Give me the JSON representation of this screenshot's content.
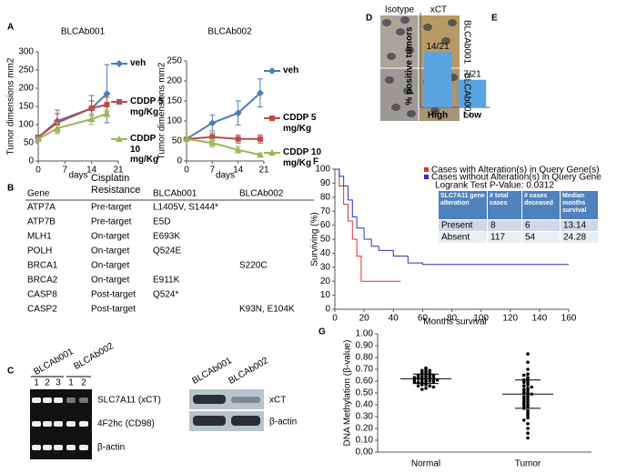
{
  "panel_labels": [
    "A",
    "B",
    "C",
    "D",
    "E",
    "F",
    "G"
  ],
  "chart_data": [
    {
      "type": "line",
      "title": "BLCAb001",
      "xlabel": "days",
      "ylabel": "Tumor dimensions mm2",
      "x": [
        0,
        5,
        14,
        18
      ],
      "xlim": [
        0,
        21
      ],
      "xticks": [
        0,
        7,
        14,
        21
      ],
      "ylim": [
        0,
        300
      ],
      "yticks": [
        0,
        50,
        100,
        150,
        200,
        250,
        300
      ],
      "series": [
        {
          "name": "veh",
          "color": "#4a7ebb",
          "marker": "diamond",
          "values": [
            65,
            110,
            145,
            185
          ],
          "errors": [
            5,
            30,
            35,
            80
          ]
        },
        {
          "name": "CDDP 5 mg/Kg",
          "color": "#be4b48",
          "marker": "square",
          "values": [
            65,
            105,
            145,
            155
          ],
          "errors": [
            5,
            25,
            20,
            20
          ]
        },
        {
          "name": "CDDP 10 mg/Kg",
          "color": "#98b954",
          "marker": "triangle",
          "values": [
            60,
            90,
            115,
            130
          ],
          "errors": [
            5,
            15,
            15,
            10
          ]
        }
      ]
    },
    {
      "type": "line",
      "title": "BLCAb002",
      "xlabel": "days",
      "ylabel": "Tumor dimensions mm2",
      "x": [
        0,
        7,
        14,
        20
      ],
      "xlim": [
        0,
        21
      ],
      "xticks": [
        0,
        7,
        14,
        21
      ],
      "ylim": [
        0,
        250
      ],
      "yticks": [
        0,
        50,
        100,
        150,
        200,
        250
      ],
      "series": [
        {
          "name": "veh",
          "color": "#4a7ebb",
          "marker": "diamond",
          "values": [
            55,
            95,
            120,
            170
          ],
          "errors": [
            5,
            20,
            30,
            35
          ]
        },
        {
          "name": "CDDP 5 mg/Kg",
          "color": "#be4b48",
          "marker": "square",
          "values": [
            55,
            60,
            55,
            55
          ],
          "errors": [
            5,
            10,
            10,
            10
          ]
        },
        {
          "name": "CDDP 10 mg/Kg",
          "color": "#98b954",
          "marker": "triangle",
          "values": [
            55,
            45,
            28,
            15
          ],
          "errors": [
            5,
            10,
            8,
            5
          ]
        }
      ]
    },
    {
      "type": "bar",
      "ylabel": "% positive tumors",
      "categories": [
        "High",
        "Low"
      ],
      "values": [
        66.7,
        33.3
      ],
      "value_labels": [
        "14/21",
        "7/21"
      ],
      "color": "#5ba3e0",
      "ylim": [
        0,
        100
      ]
    },
    {
      "type": "survival",
      "xlabel": "Months survival",
      "ylabel": "Surviving (%)",
      "xlim": [
        0,
        160
      ],
      "xticks": [
        0,
        20,
        40,
        60,
        80,
        100,
        120,
        140,
        160
      ],
      "ylim": [
        0,
        100
      ],
      "yticks": [
        0,
        10,
        20,
        30,
        40,
        50,
        60,
        70,
        80,
        90,
        100
      ],
      "series": [
        {
          "name": "Cases with Alteration(s) in Query Gene(s)",
          "color": "#e03030",
          "x": [
            0,
            3,
            6,
            9,
            12,
            15,
            18,
            45
          ],
          "values": [
            100,
            88,
            75,
            63,
            50,
            38,
            20,
            20
          ]
        },
        {
          "name": "Cases without Alteration(s) in Query Gene",
          "color": "#3030c0",
          "x": [
            0,
            3,
            6,
            9,
            12,
            15,
            20,
            25,
            30,
            40,
            50,
            60,
            160
          ],
          "values": [
            100,
            95,
            88,
            78,
            66,
            58,
            50,
            45,
            42,
            38,
            33,
            32,
            32
          ]
        }
      ],
      "annotation": "Logrank Test P-Value: 0.0312",
      "inset_table": {
        "header": [
          "SLC7A11 gene alteration",
          "# total cases",
          "# cases deceased",
          "Median months survival"
        ],
        "rows": [
          [
            "Present",
            "8",
            "6",
            "13.14"
          ],
          [
            "Absent",
            "117",
            "54",
            "24.28"
          ]
        ]
      }
    },
    {
      "type": "dot",
      "ylabel": "DNA Methylation (β-value)",
      "categories": [
        "Normal",
        "Tumor"
      ],
      "ylim": [
        0,
        1
      ],
      "yticks": [
        {
          "value": 0,
          "label": "0.00"
        },
        {
          "value": 0.1,
          "label": "0.10"
        },
        {
          "value": 0.2,
          "label": "0.20"
        },
        {
          "value": 0.3,
          "label": "0.30"
        },
        {
          "value": 0.4,
          "label": "0.40"
        },
        {
          "value": 0.5,
          "label": "0.50"
        },
        {
          "value": 0.6,
          "label": "0.60"
        },
        {
          "value": 0.7,
          "label": "0.70"
        },
        {
          "value": 0.8,
          "label": "0.80"
        },
        {
          "value": 0.9,
          "label": "0.90"
        },
        {
          "value": 1,
          "label": "1.00"
        }
      ],
      "points": [
        [
          0.71,
          0.7,
          0.69,
          0.69,
          0.68,
          0.67,
          0.67,
          0.66,
          0.66,
          0.65,
          0.65,
          0.65,
          0.64,
          0.64,
          0.64,
          0.63,
          0.63,
          0.63,
          0.62,
          0.62,
          0.62,
          0.62,
          0.61,
          0.61,
          0.61,
          0.6,
          0.6,
          0.6,
          0.59,
          0.59,
          0.59,
          0.58,
          0.58,
          0.57,
          0.57,
          0.56,
          0.56,
          0.55,
          0.54,
          0.53
        ],
        [
          0.83,
          0.76,
          0.7,
          0.66,
          0.65,
          0.63,
          0.62,
          0.61,
          0.6,
          0.59,
          0.58,
          0.57,
          0.56,
          0.55,
          0.54,
          0.53,
          0.52,
          0.51,
          0.5,
          0.5,
          0.49,
          0.48,
          0.47,
          0.46,
          0.45,
          0.44,
          0.43,
          0.42,
          0.41,
          0.4,
          0.39,
          0.38,
          0.37,
          0.35,
          0.33,
          0.31,
          0.29,
          0.27,
          0.24,
          0.2,
          0.16,
          0.12
        ]
      ],
      "means": [
        0.62,
        0.49
      ],
      "sds": [
        0.04,
        0.12
      ]
    }
  ],
  "table": {
    "header": [
      "Gene",
      "Cisplatin Resistance",
      "BLCAb001",
      "BLCAb002"
    ],
    "rows": [
      [
        "ATP7A",
        "Pre-target",
        "L1405V, S1444*",
        ""
      ],
      [
        "ATP7B",
        "Pre-target",
        "E5D",
        ""
      ],
      [
        "MLH1",
        "On-target",
        "E693K",
        ""
      ],
      [
        "POLH",
        "On-target",
        "Q524E",
        ""
      ],
      [
        "BRCA1",
        "On-target",
        "",
        "S220C"
      ],
      [
        "BRCA2",
        "On-target",
        "E911K",
        ""
      ],
      [
        "CASP8",
        "Post-target",
        "Q524*",
        ""
      ],
      [
        "CASP2",
        "Post-target",
        "",
        "K93N, E104K"
      ]
    ]
  },
  "gel": {
    "samples": [
      "BLCAb001",
      "BLCAb002"
    ],
    "lanes": [
      "1",
      "2",
      "3",
      "1",
      "2"
    ],
    "bands": [
      "SLC7A11 (xCT)",
      "4F2hc (CD98)",
      "β-actin"
    ]
  },
  "western": {
    "samples": [
      "BLCAb001",
      "BLCAb002"
    ],
    "bands": [
      "xCT",
      "β-actin"
    ]
  },
  "ihc": {
    "columns": [
      "Isotype",
      "xCT"
    ],
    "rows": [
      "BLCAb001",
      "BLCAb002"
    ]
  }
}
